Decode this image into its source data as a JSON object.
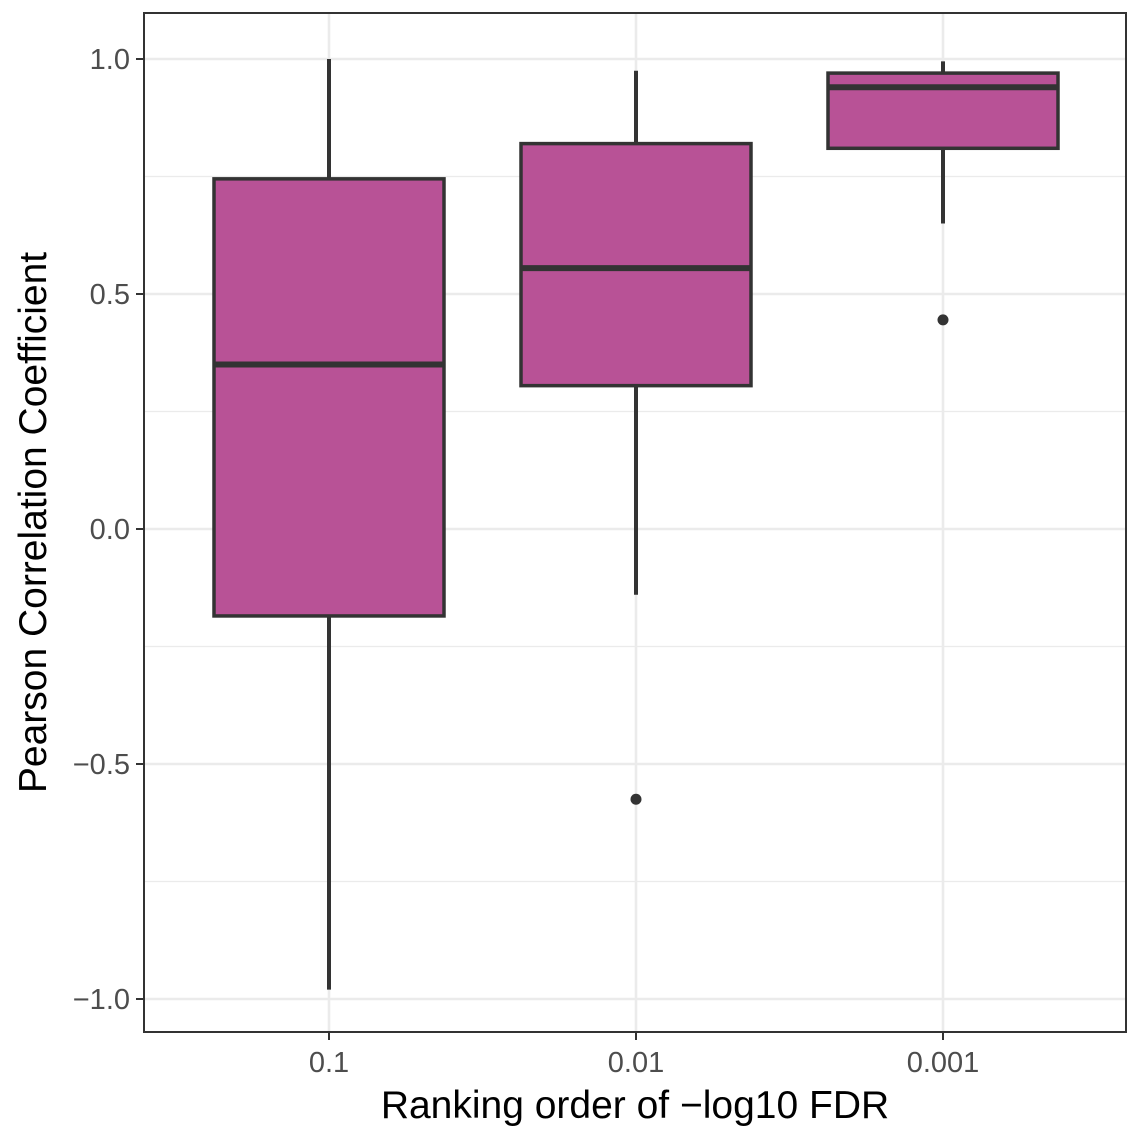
{
  "chart_data": {
    "type": "box",
    "xlabel": "Ranking order of −log10 FDR",
    "ylabel": "Pearson Correlation Coefficient",
    "categories": [
      "0.1",
      "0.01",
      "0.001"
    ],
    "ylim": [
      -1.07,
      1.09
    ],
    "yticks": [
      1.0,
      0.5,
      0.0,
      -0.5,
      -1.0
    ],
    "ytick_labels": [
      "1.0",
      "0.5",
      "0.0",
      "−0.5",
      "−1.0"
    ],
    "minor_gridlines": [
      0.75,
      0.25,
      -0.25,
      -0.75
    ],
    "grid": true,
    "boxes": [
      {
        "category": "0.1",
        "whisker_low": -0.98,
        "q1": -0.185,
        "median": 0.35,
        "q3": 0.745,
        "whisker_high": 1.0,
        "outliers": []
      },
      {
        "category": "0.01",
        "whisker_low": -0.14,
        "q1": 0.305,
        "median": 0.555,
        "q3": 0.82,
        "whisker_high": 0.975,
        "outliers": [
          -0.575
        ]
      },
      {
        "category": "0.001",
        "whisker_low": 0.65,
        "q1": 0.81,
        "median": 0.94,
        "q3": 0.97,
        "whisker_high": 0.995,
        "outliers": [
          0.445
        ]
      }
    ],
    "colors": {
      "fill": "#b85296",
      "outline": "#333333",
      "grid": "#ebebeb",
      "panel_border": "#333333"
    }
  }
}
